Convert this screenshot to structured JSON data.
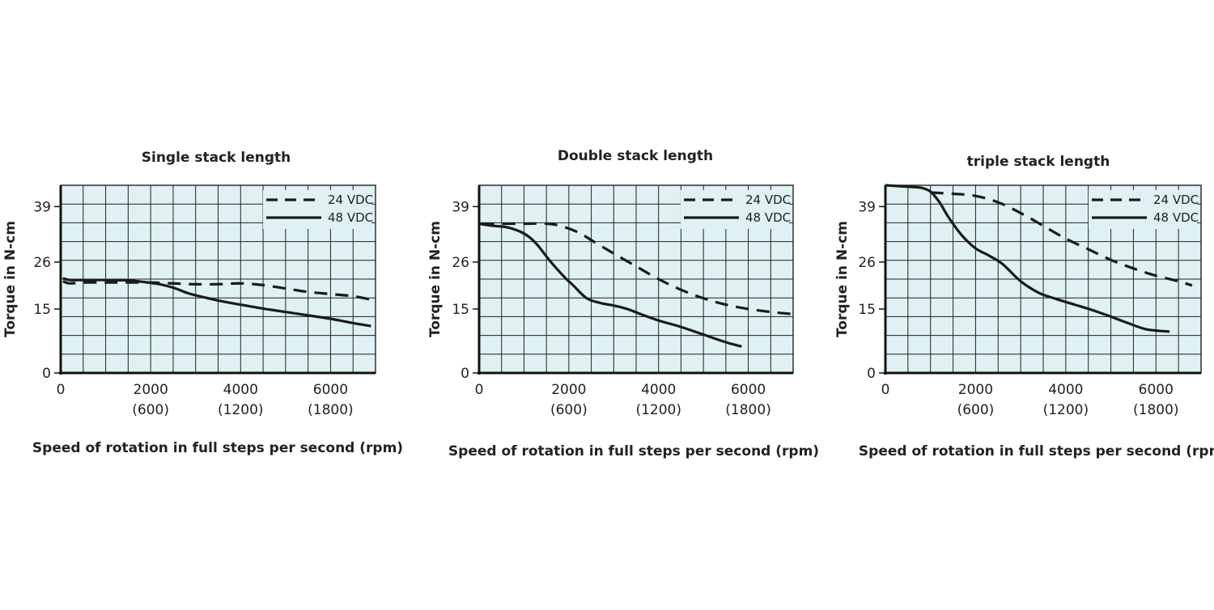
{
  "colors": {
    "plot_background": "#dff1f3",
    "grid": "#222222",
    "curve": "#1a1a1a"
  },
  "chart_data": [
    {
      "type": "line",
      "title": "Single stack length",
      "xlabel": "Speed of rotation in full steps per second (rpm)",
      "ylabel": "Torque in N-cm",
      "xlim": [
        0,
        7000
      ],
      "ylim": [
        0,
        44
      ],
      "xticks": [
        0,
        2000,
        4000,
        6000
      ],
      "xtick_labels": [
        "0",
        "2000",
        "4000",
        "6000"
      ],
      "xtick_rpm_labels": [
        "",
        "(600)",
        "(1200)",
        "(1800)"
      ],
      "yticks": [
        0,
        15,
        26,
        39
      ],
      "yticks_labels": [
        "0",
        "15",
        "26",
        "39"
      ],
      "grid": true,
      "legend_position": "top-right",
      "series": [
        {
          "name": "24 VDC",
          "style": "dashed",
          "x": [
            50,
            200,
            500,
            1000,
            1500,
            2000,
            2500,
            3000,
            3500,
            4000,
            4500,
            5000,
            5500,
            6000,
            6500,
            6900
          ],
          "y": [
            21.5,
            21,
            21.2,
            21.2,
            21.2,
            21.2,
            21,
            20.8,
            20.8,
            21,
            20.6,
            19.8,
            19,
            18.5,
            18,
            17.2
          ]
        },
        {
          "name": "48 VDC",
          "style": "solid",
          "x": [
            50,
            200,
            500,
            1000,
            1500,
            1800,
            2200,
            2500,
            2800,
            3000,
            3500,
            4000,
            4500,
            5000,
            5500,
            6000,
            6500,
            6900
          ],
          "y": [
            22.2,
            21.8,
            21.8,
            21.8,
            21.7,
            21.4,
            20.8,
            20,
            18.8,
            18.2,
            17,
            16,
            15.1,
            14.3,
            13.5,
            12.7,
            11.7,
            11
          ]
        }
      ]
    },
    {
      "type": "line",
      "title": "Double stack length",
      "xlabel": "Speed of rotation in full steps per second (rpm)",
      "ylabel": "Torque in N-cm",
      "xlim": [
        0,
        7000
      ],
      "ylim": [
        0,
        44
      ],
      "xticks": [
        0,
        2000,
        4000,
        6000
      ],
      "xtick_labels": [
        "0",
        "2000",
        "4000",
        "6000"
      ],
      "xtick_rpm_labels": [
        "",
        "(600)",
        "(1200)",
        "(1800)"
      ],
      "yticks": [
        0,
        15,
        26,
        39
      ],
      "yticks_labels": [
        "0",
        "15",
        "26",
        "39"
      ],
      "grid": true,
      "legend_position": "top-right",
      "series": [
        {
          "name": "24 VDC",
          "style": "dashed",
          "x": [
            50,
            500,
            1000,
            1500,
            1800,
            2200,
            2600,
            3000,
            3500,
            4000,
            4500,
            5000,
            5500,
            6000,
            6500,
            7000
          ],
          "y": [
            35,
            35,
            35,
            35,
            34.5,
            33,
            30.5,
            28,
            25,
            22,
            19.5,
            17.5,
            16,
            15,
            14.3,
            13.8
          ]
        },
        {
          "name": "48 VDC",
          "style": "solid",
          "x": [
            0,
            300,
            600,
            900,
            1100,
            1300,
            1600,
            1900,
            2100,
            2400,
            2700,
            3000,
            3300,
            3600,
            4000,
            4500,
            5000,
            5500,
            5850
          ],
          "y": [
            35,
            34.5,
            34.2,
            33.2,
            32,
            30,
            26,
            22.5,
            20.5,
            17.5,
            16.4,
            15.8,
            15,
            13.8,
            12.3,
            10.8,
            9,
            7.2,
            6.2
          ]
        }
      ]
    },
    {
      "type": "line",
      "title": "triple stack length",
      "xlabel": "Speed of rotation in full steps per second (rpm)",
      "ylabel": "Torque in N-cm",
      "xlim": [
        0,
        7000
      ],
      "ylim": [
        0,
        44
      ],
      "xticks": [
        0,
        2000,
        4000,
        6000
      ],
      "xtick_labels": [
        "0",
        "2000",
        "4000",
        "6000"
      ],
      "xtick_rpm_labels": [
        "",
        "(600)",
        "(1200)",
        "(1800)"
      ],
      "yticks": [
        0,
        15,
        26,
        39
      ],
      "yticks_labels": [
        "0",
        "15",
        "26",
        "39"
      ],
      "grid": true,
      "legend_position": "top-right",
      "series": [
        {
          "name": "24 VDC",
          "style": "dashed",
          "x": [
            1000,
            1500,
            2000,
            2500,
            3000,
            3500,
            4000,
            4500,
            5000,
            5500,
            6000,
            6500,
            6800
          ],
          "y": [
            42.3,
            42,
            41.5,
            40,
            37.5,
            34.5,
            31.5,
            29,
            26.5,
            24.5,
            22.8,
            21.5,
            20.5
          ]
        },
        {
          "name": "48 VDC",
          "style": "solid",
          "x": [
            0,
            300,
            600,
            800,
            1000,
            1200,
            1400,
            1700,
            2000,
            2300,
            2600,
            3000,
            3400,
            3800,
            4200,
            4600,
            5000,
            5400,
            5800,
            6300
          ],
          "y": [
            44,
            43.8,
            43.6,
            43.4,
            42.5,
            40,
            36.5,
            32.2,
            29.2,
            27.5,
            25.5,
            21.5,
            18.8,
            17.3,
            16,
            14.7,
            13.2,
            11.6,
            10.2,
            9.7
          ]
        }
      ]
    }
  ]
}
